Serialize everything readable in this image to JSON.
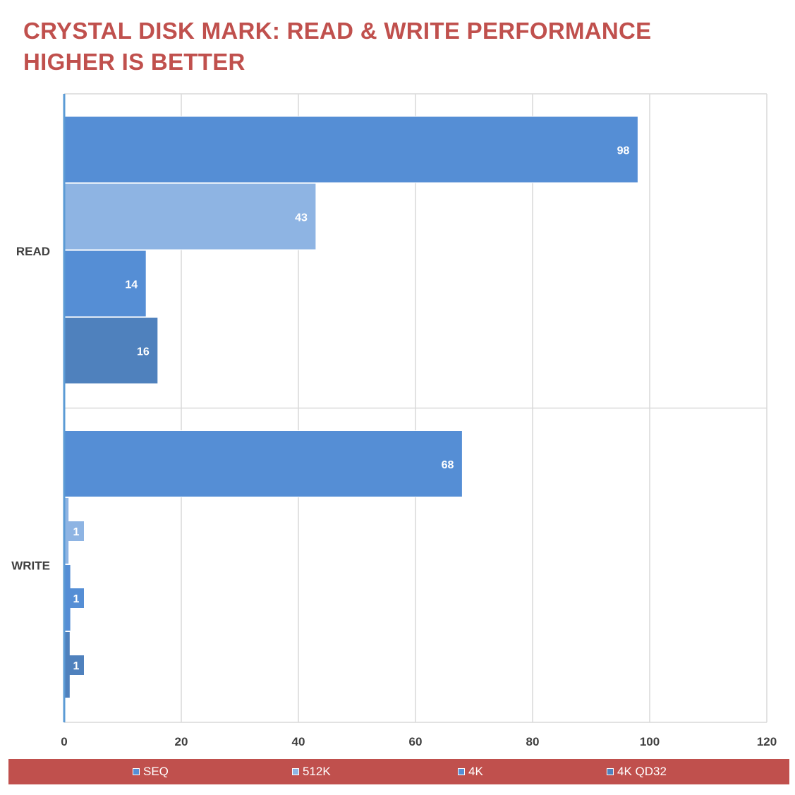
{
  "title": {
    "line1": "CRYSTAL DISK MARK: READ & WRITE PERFORMANCE",
    "line2": "HIGHER IS BETTER"
  },
  "chart_data": {
    "type": "bar",
    "orientation": "horizontal",
    "categories": [
      "READ",
      "WRITE"
    ],
    "series": [
      {
        "name": "SEQ",
        "values": [
          98,
          68
        ],
        "labels": [
          "98",
          "68"
        ],
        "color": "#558ed5"
      },
      {
        "name": "512K",
        "values": [
          43,
          0.8
        ],
        "labels": [
          "43",
          "1"
        ],
        "color": "#8eb4e3"
      },
      {
        "name": "4K",
        "values": [
          14,
          1.1
        ],
        "labels": [
          "14",
          "1"
        ],
        "color": "#558ed5"
      },
      {
        "name": "4K QD32",
        "values": [
          16,
          1.0
        ],
        "labels": [
          "16",
          "1"
        ],
        "color": "#4f81bd"
      }
    ],
    "xlim": [
      0,
      120
    ],
    "xticks": [
      0,
      20,
      40,
      60,
      80,
      100,
      120
    ],
    "grid": true,
    "legend_position": "bottom"
  },
  "legend": {
    "background": "#c0504d",
    "items": [
      "SEQ",
      "512K",
      "4K",
      "4K QD32"
    ]
  },
  "colors": {
    "title": "#c0504d",
    "axis_text": "#404040",
    "gridline": "#d9d9d9",
    "axis_line": "#5b9bd5"
  }
}
